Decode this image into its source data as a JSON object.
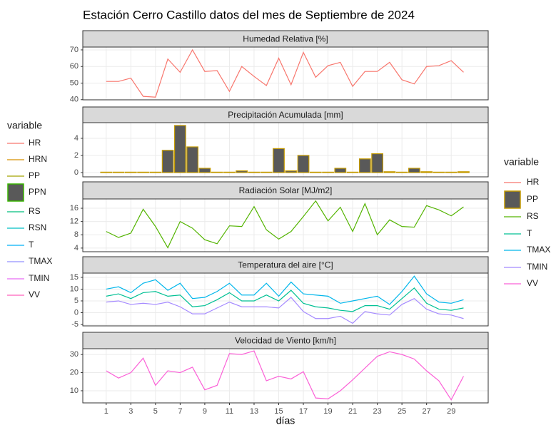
{
  "title": "Estación Cerro Castillo datos del mes de Septiembre de 2024",
  "x_label": "días",
  "legend_left": {
    "title": "variable",
    "entries": [
      {
        "name": "HR",
        "color": "#F8766D"
      },
      {
        "name": "HRN",
        "color": "#D89000"
      },
      {
        "name": "PP",
        "color": "#A3A500"
      },
      {
        "name": "PPN",
        "color": "#39B600",
        "fill": "#595959"
      },
      {
        "name": "RS",
        "color": "#00BF7D"
      },
      {
        "name": "RSN",
        "color": "#00BFC4"
      },
      {
        "name": "T",
        "color": "#00B0F6"
      },
      {
        "name": "TMAX",
        "color": "#9590FF"
      },
      {
        "name": "TMIN",
        "color": "#E76BF3"
      },
      {
        "name": "VV",
        "color": "#FF62BC"
      }
    ]
  },
  "legend_right": {
    "title": "variable"
  },
  "chart_data": [
    {
      "type": "line",
      "title": "Humedad Relativa [%]",
      "x": [
        1,
        2,
        3,
        4,
        5,
        6,
        7,
        8,
        9,
        10,
        11,
        12,
        13,
        14,
        15,
        16,
        17,
        18,
        19,
        20,
        21,
        22,
        23,
        24,
        25,
        26,
        27,
        28,
        29,
        30
      ],
      "xlim": [
        -0.9,
        32
      ],
      "xticks": [
        1,
        3,
        5,
        7,
        9,
        11,
        13,
        15,
        17,
        19,
        21,
        23,
        25,
        27,
        29
      ],
      "ylim": [
        39.9,
        71.7
      ],
      "yticks": [
        40,
        50,
        60,
        70
      ],
      "series": [
        {
          "name": "HR",
          "color": "#F8766D",
          "values": [
            51,
            51,
            53,
            42,
            41.5,
            64.5,
            56.5,
            70,
            57,
            57.5,
            45,
            60,
            54,
            48.5,
            65,
            49,
            68.5,
            53.5,
            60.5,
            62.5,
            48,
            57,
            57,
            62.5,
            52,
            49.5,
            60,
            60.5,
            63.5,
            56.5
          ]
        }
      ]
    },
    {
      "type": "bar",
      "title": "Precipitación Acumulada [mm]",
      "x": [
        1,
        2,
        3,
        4,
        5,
        6,
        7,
        8,
        9,
        10,
        11,
        12,
        13,
        14,
        15,
        16,
        17,
        18,
        19,
        20,
        21,
        22,
        23,
        24,
        25,
        26,
        27,
        28,
        29,
        30
      ],
      "xlim": [
        -0.9,
        32
      ],
      "xticks": [
        1,
        3,
        5,
        7,
        9,
        11,
        13,
        15,
        17,
        19,
        21,
        23,
        25,
        27,
        29
      ],
      "ylim": [
        -0.5,
        5.83
      ],
      "yticks": [
        0,
        2,
        4
      ],
      "series": [
        {
          "name": "PP",
          "color": "#C49A00",
          "fill": "#595959",
          "values": [
            0.05,
            0.05,
            0.05,
            0.05,
            0.05,
            2.6,
            5.5,
            3.0,
            0.5,
            0.05,
            0.05,
            0.2,
            0.05,
            0.05,
            2.8,
            0.2,
            2.0,
            0.05,
            0.05,
            0.5,
            0.05,
            1.6,
            2.2,
            0.1,
            0.05,
            0.5,
            0.1,
            0.05,
            0.05,
            0.1
          ]
        }
      ]
    },
    {
      "type": "line",
      "title": "Radiación Solar [MJ/m2]",
      "x": [
        1,
        2,
        3,
        4,
        5,
        6,
        7,
        8,
        9,
        10,
        11,
        12,
        13,
        14,
        15,
        16,
        17,
        18,
        19,
        20,
        21,
        22,
        23,
        24,
        25,
        26,
        27,
        28,
        29,
        30
      ],
      "xlim": [
        -0.9,
        32
      ],
      "xticks": [
        1,
        3,
        5,
        7,
        9,
        11,
        13,
        15,
        17,
        19,
        21,
        23,
        25,
        27,
        29
      ],
      "ylim": [
        2.9,
        18.8
      ],
      "yticks": [
        4,
        8,
        12,
        16
      ],
      "series": [
        {
          "name": "RS",
          "color": "#53B400",
          "values": [
            9,
            7.2,
            8.5,
            15.7,
            10.5,
            4.1,
            12,
            10,
            6.5,
            5.3,
            10.7,
            10.5,
            16.5,
            9.5,
            6.7,
            9,
            13.5,
            18.2,
            12.2,
            16.3,
            9,
            17.4,
            8,
            12.5,
            10.5,
            10.3,
            16.8,
            15.5,
            13.7,
            16.4
          ]
        }
      ]
    },
    {
      "type": "line",
      "title": "Temperatura del aire [°C]",
      "x": [
        1,
        2,
        3,
        4,
        5,
        6,
        7,
        8,
        9,
        10,
        11,
        12,
        13,
        14,
        15,
        16,
        17,
        18,
        19,
        20,
        21,
        22,
        23,
        24,
        25,
        26,
        27,
        28,
        29,
        30
      ],
      "xlim": [
        -0.9,
        32
      ],
      "xticks": [
        1,
        3,
        5,
        7,
        9,
        11,
        13,
        15,
        17,
        19,
        21,
        23,
        25,
        27,
        29
      ],
      "ylim": [
        -5.6,
        16.8
      ],
      "yticks": [
        -5,
        0,
        5,
        10,
        15
      ],
      "series": [
        {
          "name": "T",
          "color": "#00C094",
          "values": [
            7,
            8,
            6,
            8.5,
            9,
            7,
            7.5,
            2.5,
            3,
            5.5,
            8.5,
            5,
            5,
            7.5,
            5,
            9.5,
            4,
            2.5,
            2,
            1,
            0.5,
            3,
            3,
            1.5,
            6,
            10.5,
            4,
            1.5,
            1,
            2
          ]
        },
        {
          "name": "TMAX",
          "color": "#00B6EB",
          "values": [
            10,
            11,
            8.5,
            12.5,
            14,
            9.5,
            12.5,
            6,
            6.5,
            9,
            12.5,
            7.5,
            7.5,
            12.5,
            7,
            13,
            8,
            7.5,
            7,
            4,
            5,
            6,
            7,
            3.5,
            9,
            15.5,
            8,
            4.5,
            4,
            5.5
          ]
        },
        {
          "name": "TMIN",
          "color": "#A58AFF",
          "values": [
            4.5,
            5,
            3.5,
            4,
            3.5,
            4.5,
            2.5,
            -0.5,
            -0.5,
            2,
            4.5,
            2.5,
            2.5,
            2.5,
            2,
            6.5,
            0.5,
            -2.5,
            -2.5,
            -1.5,
            -4.5,
            0.5,
            -0.5,
            -1,
            3.5,
            6,
            1.5,
            -0.5,
            -1,
            -2.5
          ]
        }
      ]
    },
    {
      "type": "line",
      "title": "Velocidad de Viento [km/h]",
      "x": [
        1,
        2,
        3,
        4,
        5,
        6,
        7,
        8,
        9,
        10,
        11,
        12,
        13,
        14,
        15,
        16,
        17,
        18,
        19,
        20,
        21,
        22,
        23,
        24,
        25,
        26,
        27,
        28,
        29,
        30
      ],
      "xlim": [
        -0.9,
        32
      ],
      "xticks": [
        1,
        3,
        5,
        7,
        9,
        11,
        13,
        15,
        17,
        19,
        21,
        23,
        25,
        27,
        29
      ],
      "ylim": [
        3.3,
        33.2
      ],
      "yticks": [
        10,
        20,
        30
      ],
      "series": [
        {
          "name": "VV",
          "color": "#FB61D7",
          "values": [
            21,
            17,
            20,
            28,
            13,
            21,
            20,
            23,
            10.5,
            13,
            30.5,
            30,
            32,
            15.5,
            18,
            16.5,
            20.5,
            6,
            5.5,
            10,
            16,
            22.5,
            29,
            31.5,
            30,
            27.5,
            21,
            15.5,
            5,
            18
          ]
        }
      ]
    }
  ]
}
